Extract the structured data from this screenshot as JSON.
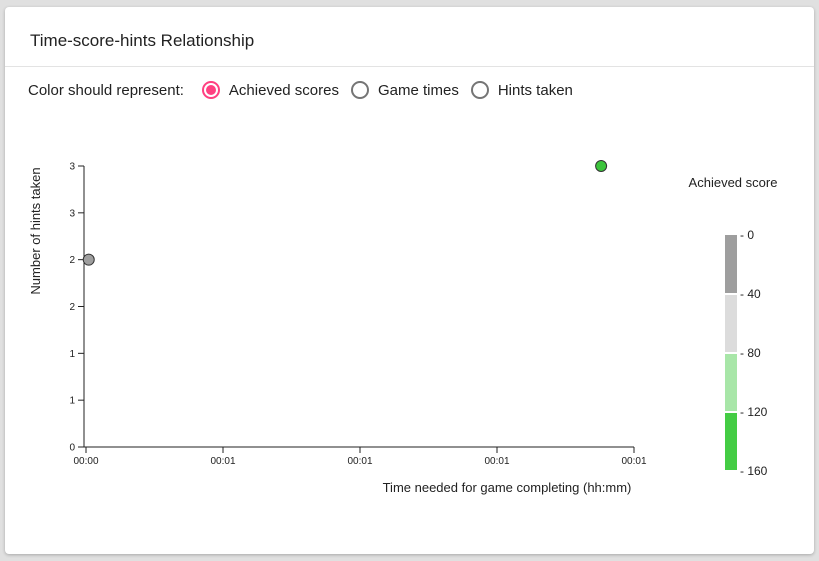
{
  "card": {
    "title": "Time-score-hints Relationship"
  },
  "color_selector": {
    "label": "Color should represent:",
    "options": [
      {
        "label": "Achieved scores",
        "checked": true
      },
      {
        "label": "Game times",
        "checked": false
      },
      {
        "label": "Hints taken",
        "checked": false
      }
    ]
  },
  "colors": {
    "accent": "#ff4081",
    "radio_border": "#757575"
  },
  "chart_data": {
    "type": "scatter",
    "xlabel": "Time needed for game completing (hh:mm)",
    "ylabel": "Number of hints taken",
    "x_tick_labels": [
      "00:00",
      "00:01",
      "00:01",
      "00:01",
      "00:01"
    ],
    "x_tick_values": [
      0,
      0.25,
      0.5,
      0.75,
      1.0
    ],
    "xlim": [
      0,
      1.0
    ],
    "y_tick_labels": [
      "0",
      "1",
      "1",
      "2",
      "2",
      "3",
      "3"
    ],
    "y_tick_values": [
      0,
      0.5,
      1,
      1.5,
      2,
      2.5,
      3
    ],
    "ylim": [
      0,
      3
    ],
    "points": [
      {
        "x": 0.005,
        "y": 2,
        "color": "#9e9e9e"
      },
      {
        "x": 0.94,
        "y": 3,
        "color": "#3cc43c"
      }
    ],
    "legend": {
      "title": "Achieved score",
      "position": "right",
      "labels": [
        "- 0",
        "- 40",
        "- 80",
        "- 120",
        "- 160"
      ],
      "colors": [
        "#9e9e9e",
        "#dcdcdc",
        "#a8e6a8",
        "#44cc44"
      ]
    }
  }
}
